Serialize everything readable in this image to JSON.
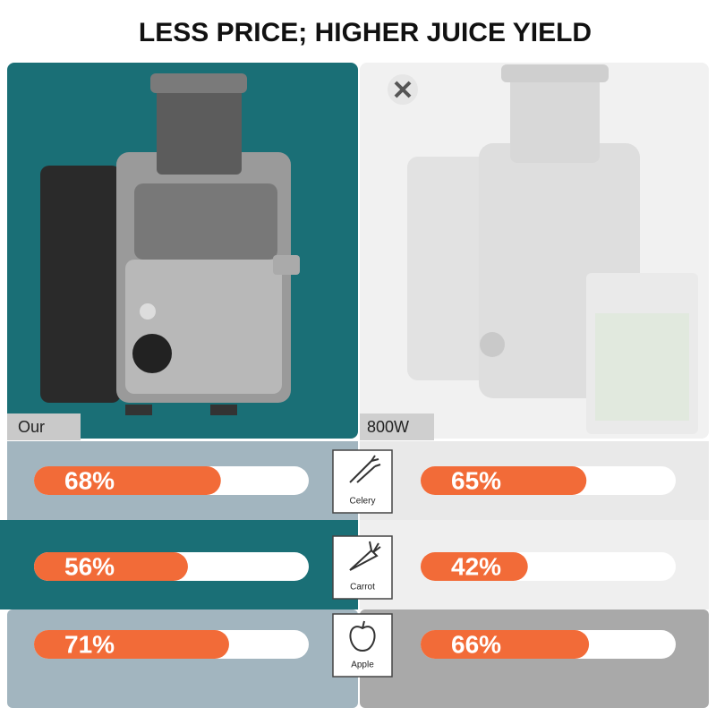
{
  "chart_data": {
    "type": "bar",
    "title": "LESS PRICE; HIGHER JUICE YIELD",
    "categories": [
      "Celery",
      "Carrot",
      "Apple"
    ],
    "series": [
      {
        "name": "Our",
        "color": "#f26b38",
        "values": [
          68,
          56,
          71
        ],
        "value_labels": [
          "68%",
          "56%",
          "71%"
        ]
      },
      {
        "name": "800W",
        "color": "#f26b38",
        "values": [
          65,
          42,
          66
        ],
        "value_labels": [
          "65%",
          "42%",
          "66%"
        ]
      }
    ],
    "xlim": [
      0,
      100
    ]
  }
}
